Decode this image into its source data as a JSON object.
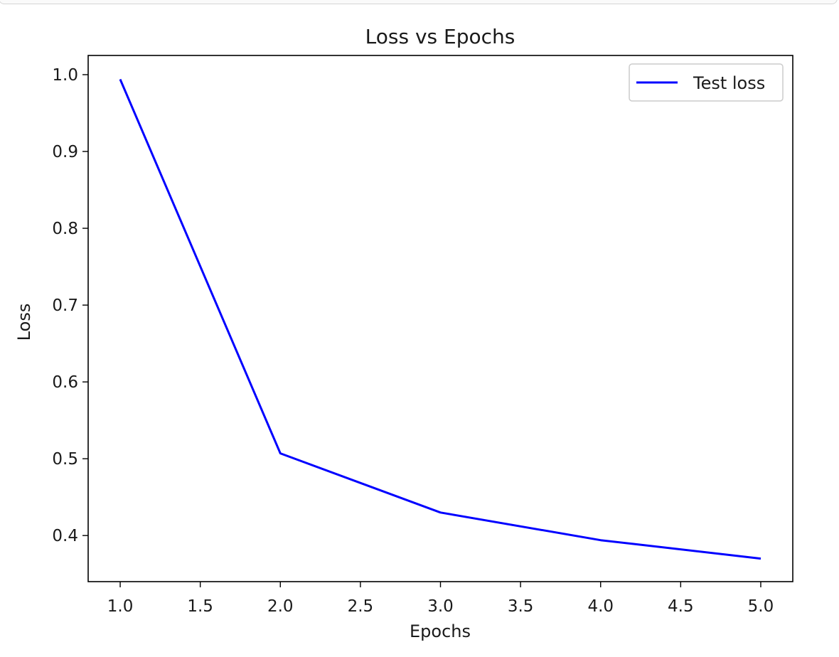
{
  "chart_data": {
    "type": "line",
    "title": "Loss vs Epochs",
    "xlabel": "Epochs",
    "ylabel": "Loss",
    "xlim": [
      0.8,
      5.2
    ],
    "ylim": [
      0.34,
      1.025
    ],
    "xticks": [
      1.0,
      1.5,
      2.0,
      2.5,
      3.0,
      3.5,
      4.0,
      4.5,
      5.0
    ],
    "xtick_labels": [
      "1.0",
      "1.5",
      "2.0",
      "2.5",
      "3.0",
      "3.5",
      "4.0",
      "4.5",
      "5.0"
    ],
    "yticks": [
      0.4,
      0.5,
      0.6,
      0.7,
      0.8,
      0.9,
      1.0
    ],
    "ytick_labels": [
      "0.4",
      "0.5",
      "0.6",
      "0.7",
      "0.8",
      "0.9",
      "1.0"
    ],
    "grid": false,
    "legend_position": "top-right",
    "series": [
      {
        "name": "Test loss",
        "color": "#0000ff",
        "x": [
          1,
          2,
          3,
          4,
          5
        ],
        "y": [
          0.994,
          0.507,
          0.43,
          0.394,
          0.37
        ]
      }
    ]
  }
}
